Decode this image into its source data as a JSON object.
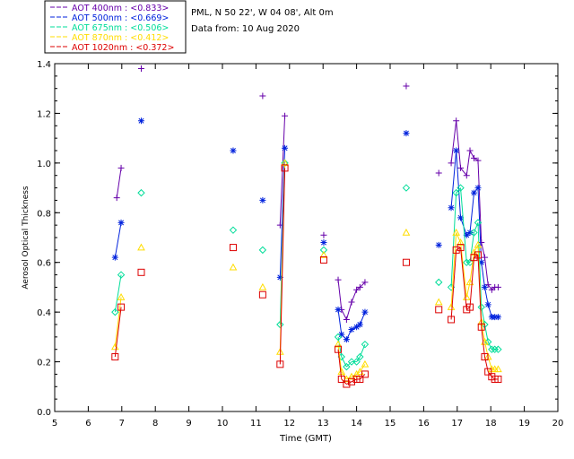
{
  "header": {
    "site": "PML, N 50 22', W 04 08', Alt 0m",
    "date": "Data from: 10 Aug 2020"
  },
  "chart_data": {
    "type": "line",
    "title": "",
    "xlabel": "Time (GMT)",
    "ylabel": "Aerosol Optical Thickness",
    "xlim": [
      5,
      20
    ],
    "ylim": [
      0.0,
      1.4
    ],
    "x_ticks": [
      "5",
      "6",
      "7",
      "8",
      "9",
      "10",
      "11",
      "12",
      "13",
      "14",
      "15",
      "16",
      "17",
      "18",
      "19",
      "20"
    ],
    "y_ticks": [
      "0.0",
      "0.2",
      "0.4",
      "0.6",
      "0.8",
      "1.0",
      "1.2",
      "1.4"
    ],
    "legend_position": "top-left, above plot",
    "series": [
      {
        "name": "AOT  400nm : <0.833>",
        "color": "#6600aa",
        "marker": "plus",
        "x": [
          6.85,
          6.98,
          7.58,
          10.32,
          11.2,
          11.72,
          11.86,
          13.02,
          13.45,
          13.55,
          13.7,
          13.85,
          14.0,
          14.1,
          14.25,
          15.48,
          16.45,
          16.82,
          16.97,
          17.1,
          17.28,
          17.38,
          17.5,
          17.62,
          17.72,
          17.82,
          17.92,
          18.03,
          18.12,
          18.22
        ],
        "y": [
          0.86,
          0.98,
          1.38,
          1.05,
          1.27,
          0.75,
          1.19,
          0.71,
          0.53,
          0.41,
          0.37,
          0.44,
          0.49,
          0.5,
          0.52,
          1.31,
          0.96,
          1.0,
          1.17,
          0.98,
          0.95,
          1.05,
          1.02,
          1.01,
          0.68,
          0.62,
          0.51,
          0.49,
          0.5,
          0.5
        ]
      },
      {
        "name": "AOT  500nm : <0.669>",
        "color": "#0022dd",
        "marker": "star",
        "x": [
          6.8,
          6.98,
          7.58,
          10.32,
          11.2,
          11.72,
          11.86,
          13.02,
          13.45,
          13.55,
          13.7,
          13.85,
          14.0,
          14.1,
          14.25,
          15.48,
          16.45,
          16.82,
          16.97,
          17.1,
          17.28,
          17.38,
          17.5,
          17.62,
          17.72,
          17.82,
          17.92,
          18.03,
          18.12,
          18.22
        ],
        "y": [
          0.62,
          0.76,
          1.17,
          1.05,
          0.85,
          0.54,
          1.06,
          0.68,
          0.41,
          0.31,
          0.29,
          0.33,
          0.34,
          0.35,
          0.4,
          1.12,
          0.67,
          0.82,
          1.05,
          0.78,
          0.71,
          0.72,
          0.88,
          0.9,
          0.6,
          0.5,
          0.43,
          0.38,
          0.38,
          0.38
        ]
      },
      {
        "name": "AOT  675nm : <0.506>",
        "color": "#00dd99",
        "marker": "diamond",
        "x": [
          6.8,
          6.98,
          7.58,
          10.32,
          11.2,
          11.72,
          11.86,
          13.02,
          13.45,
          13.55,
          13.7,
          13.85,
          14.0,
          14.1,
          14.25,
          15.48,
          16.45,
          16.82,
          16.97,
          17.1,
          17.28,
          17.38,
          17.5,
          17.62,
          17.72,
          17.82,
          17.92,
          18.03,
          18.12,
          18.22
        ],
        "y": [
          0.4,
          0.55,
          0.88,
          0.73,
          0.65,
          0.35,
          1.0,
          0.65,
          0.3,
          0.22,
          0.18,
          0.2,
          0.2,
          0.22,
          0.27,
          0.9,
          0.52,
          0.5,
          0.88,
          0.9,
          0.6,
          0.6,
          0.72,
          0.76,
          0.42,
          0.35,
          0.28,
          0.25,
          0.25,
          0.25
        ]
      },
      {
        "name": "AOT  870nm : <0.412>",
        "color": "#ffdd00",
        "marker": "triangle",
        "x": [
          6.8,
          6.98,
          7.58,
          10.32,
          11.2,
          11.72,
          11.86,
          13.02,
          13.45,
          13.55,
          13.7,
          13.85,
          14.0,
          14.1,
          14.25,
          15.48,
          16.45,
          16.82,
          16.97,
          17.1,
          17.28,
          17.38,
          17.5,
          17.62,
          17.72,
          17.82,
          17.92,
          18.03,
          18.12,
          18.22
        ],
        "y": [
          0.26,
          0.46,
          0.66,
          0.58,
          0.5,
          0.24,
          1.0,
          0.63,
          0.27,
          0.16,
          0.13,
          0.14,
          0.15,
          0.16,
          0.19,
          0.72,
          0.44,
          0.42,
          0.72,
          0.68,
          0.46,
          0.52,
          0.64,
          0.67,
          0.36,
          0.28,
          0.22,
          0.17,
          0.17,
          0.17
        ]
      },
      {
        "name": "AOT 1020nm : <0.372>",
        "color": "#dd0000",
        "marker": "square",
        "x": [
          6.8,
          6.98,
          7.58,
          10.32,
          11.2,
          11.72,
          11.86,
          13.02,
          13.45,
          13.55,
          13.7,
          13.85,
          14.0,
          14.1,
          14.25,
          15.48,
          16.45,
          16.82,
          16.97,
          17.1,
          17.28,
          17.38,
          17.5,
          17.62,
          17.72,
          17.82,
          17.92,
          18.03,
          18.12,
          18.22
        ],
        "y": [
          0.22,
          0.42,
          0.56,
          0.66,
          0.47,
          0.19,
          0.98,
          0.61,
          0.25,
          0.13,
          0.11,
          0.12,
          0.13,
          0.13,
          0.15,
          0.6,
          0.41,
          0.37,
          0.65,
          0.66,
          0.41,
          0.42,
          0.62,
          0.63,
          0.34,
          0.22,
          0.16,
          0.14,
          0.13,
          0.13
        ]
      }
    ]
  }
}
